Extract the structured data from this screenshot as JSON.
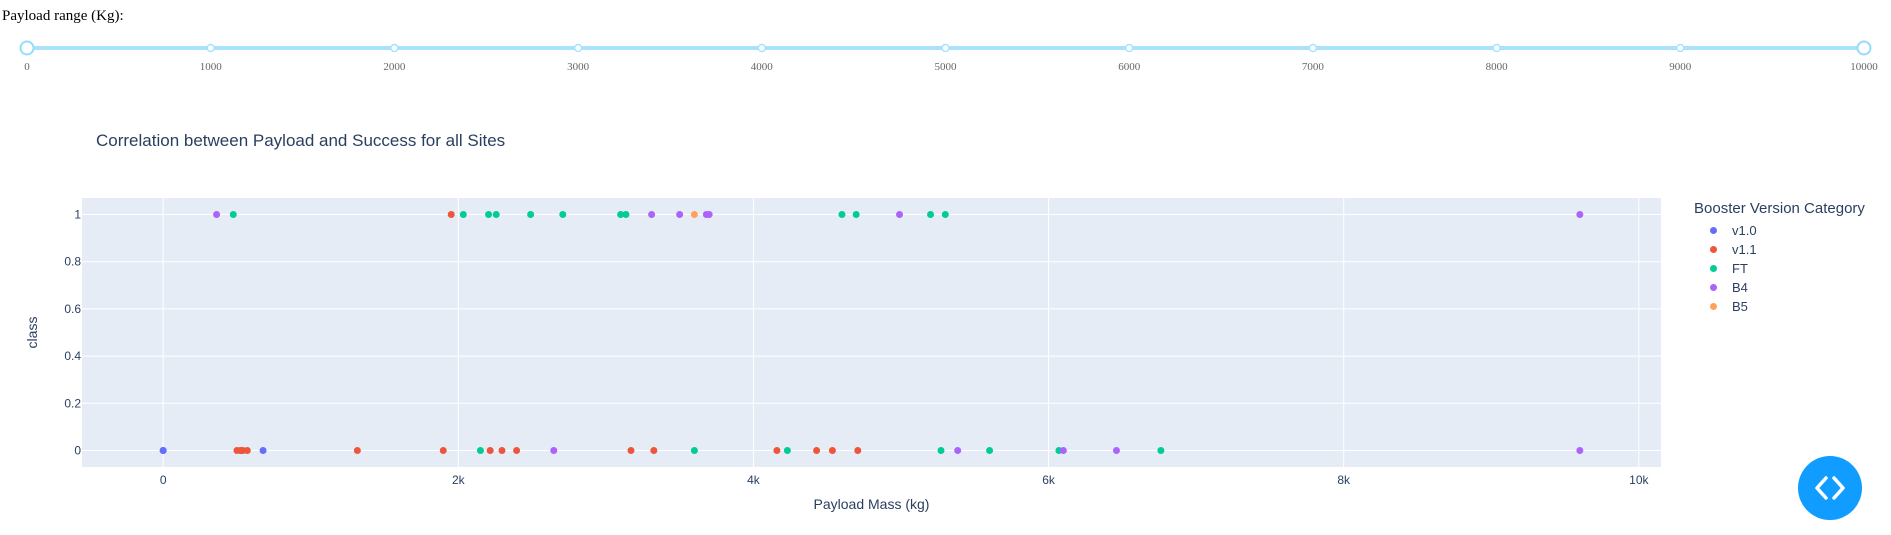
{
  "slider": {
    "label": "Payload range (Kg):",
    "min": 0,
    "max": 10000,
    "value": [
      0,
      10000
    ],
    "marks": [
      "0",
      "1000",
      "2000",
      "3000",
      "4000",
      "5000",
      "6000",
      "7000",
      "8000",
      "9000",
      "10000"
    ]
  },
  "chart_data": {
    "type": "scatter",
    "title": "Correlation between Payload and Success for all Sites",
    "xlabel": "Payload Mass (kg)",
    "ylabel": "class",
    "xlim": [
      -550,
      10150
    ],
    "ylim": [
      -0.07,
      1.07
    ],
    "x_ticks": [
      {
        "v": 0,
        "label": "0"
      },
      {
        "v": 2000,
        "label": "2k"
      },
      {
        "v": 4000,
        "label": "4k"
      },
      {
        "v": 6000,
        "label": "6k"
      },
      {
        "v": 8000,
        "label": "8k"
      },
      {
        "v": 10000,
        "label": "10k"
      }
    ],
    "y_ticks": [
      {
        "v": 0,
        "label": "0"
      },
      {
        "v": 0.2,
        "label": "0.2"
      },
      {
        "v": 0.4,
        "label": "0.4"
      },
      {
        "v": 0.6,
        "label": "0.6"
      },
      {
        "v": 0.8,
        "label": "0.8"
      },
      {
        "v": 1,
        "label": "1"
      }
    ],
    "grid": true,
    "legend_title": "Booster Version Category",
    "legend_position": "right",
    "series": [
      {
        "name": "v1.0",
        "color": "#636efa",
        "points": [
          [
            0,
            0
          ],
          [
            0,
            0
          ],
          [
            525,
            0
          ],
          [
            677,
            0
          ]
        ]
      },
      {
        "name": "v1.1",
        "color": "#ef553b",
        "points": [
          [
            500,
            0
          ],
          [
            525,
            0
          ],
          [
            540,
            0
          ],
          [
            570,
            0
          ],
          [
            1316,
            0
          ],
          [
            1898,
            0
          ],
          [
            1952,
            1
          ],
          [
            2216,
            0
          ],
          [
            2296,
            0
          ],
          [
            2395,
            0
          ],
          [
            3170,
            0
          ],
          [
            3325,
            0
          ],
          [
            4159,
            0
          ],
          [
            4428,
            0
          ],
          [
            4535,
            0
          ],
          [
            4707,
            0
          ]
        ]
      },
      {
        "name": "FT",
        "color": "#00cc96",
        "points": [
          [
            475,
            1
          ],
          [
            2034,
            1
          ],
          [
            2150,
            0
          ],
          [
            2205,
            1
          ],
          [
            2257,
            1
          ],
          [
            2490,
            1
          ],
          [
            2708,
            1
          ],
          [
            3100,
            1
          ],
          [
            3136,
            1
          ],
          [
            3600,
            0
          ],
          [
            4230,
            0
          ],
          [
            4600,
            1
          ],
          [
            4696,
            1
          ],
          [
            5200,
            1
          ],
          [
            5300,
            1
          ],
          [
            5271,
            0
          ],
          [
            5600,
            0
          ],
          [
            6070,
            0
          ],
          [
            6761,
            0
          ]
        ]
      },
      {
        "name": "B4",
        "color": "#ab63fa",
        "points": [
          [
            362,
            1
          ],
          [
            2647,
            0
          ],
          [
            3310,
            1
          ],
          [
            3500,
            1
          ],
          [
            3681,
            1
          ],
          [
            3700,
            1
          ],
          [
            4990,
            1
          ],
          [
            5384,
            0
          ],
          [
            6100,
            0
          ],
          [
            6460,
            0
          ],
          [
            9600,
            1
          ],
          [
            9600,
            0
          ]
        ]
      },
      {
        "name": "B5",
        "color": "#ffa15a",
        "points": [
          [
            3600,
            1
          ]
        ]
      }
    ]
  },
  "toggle": {
    "icon": "code-icon",
    "color": "#119dff"
  }
}
